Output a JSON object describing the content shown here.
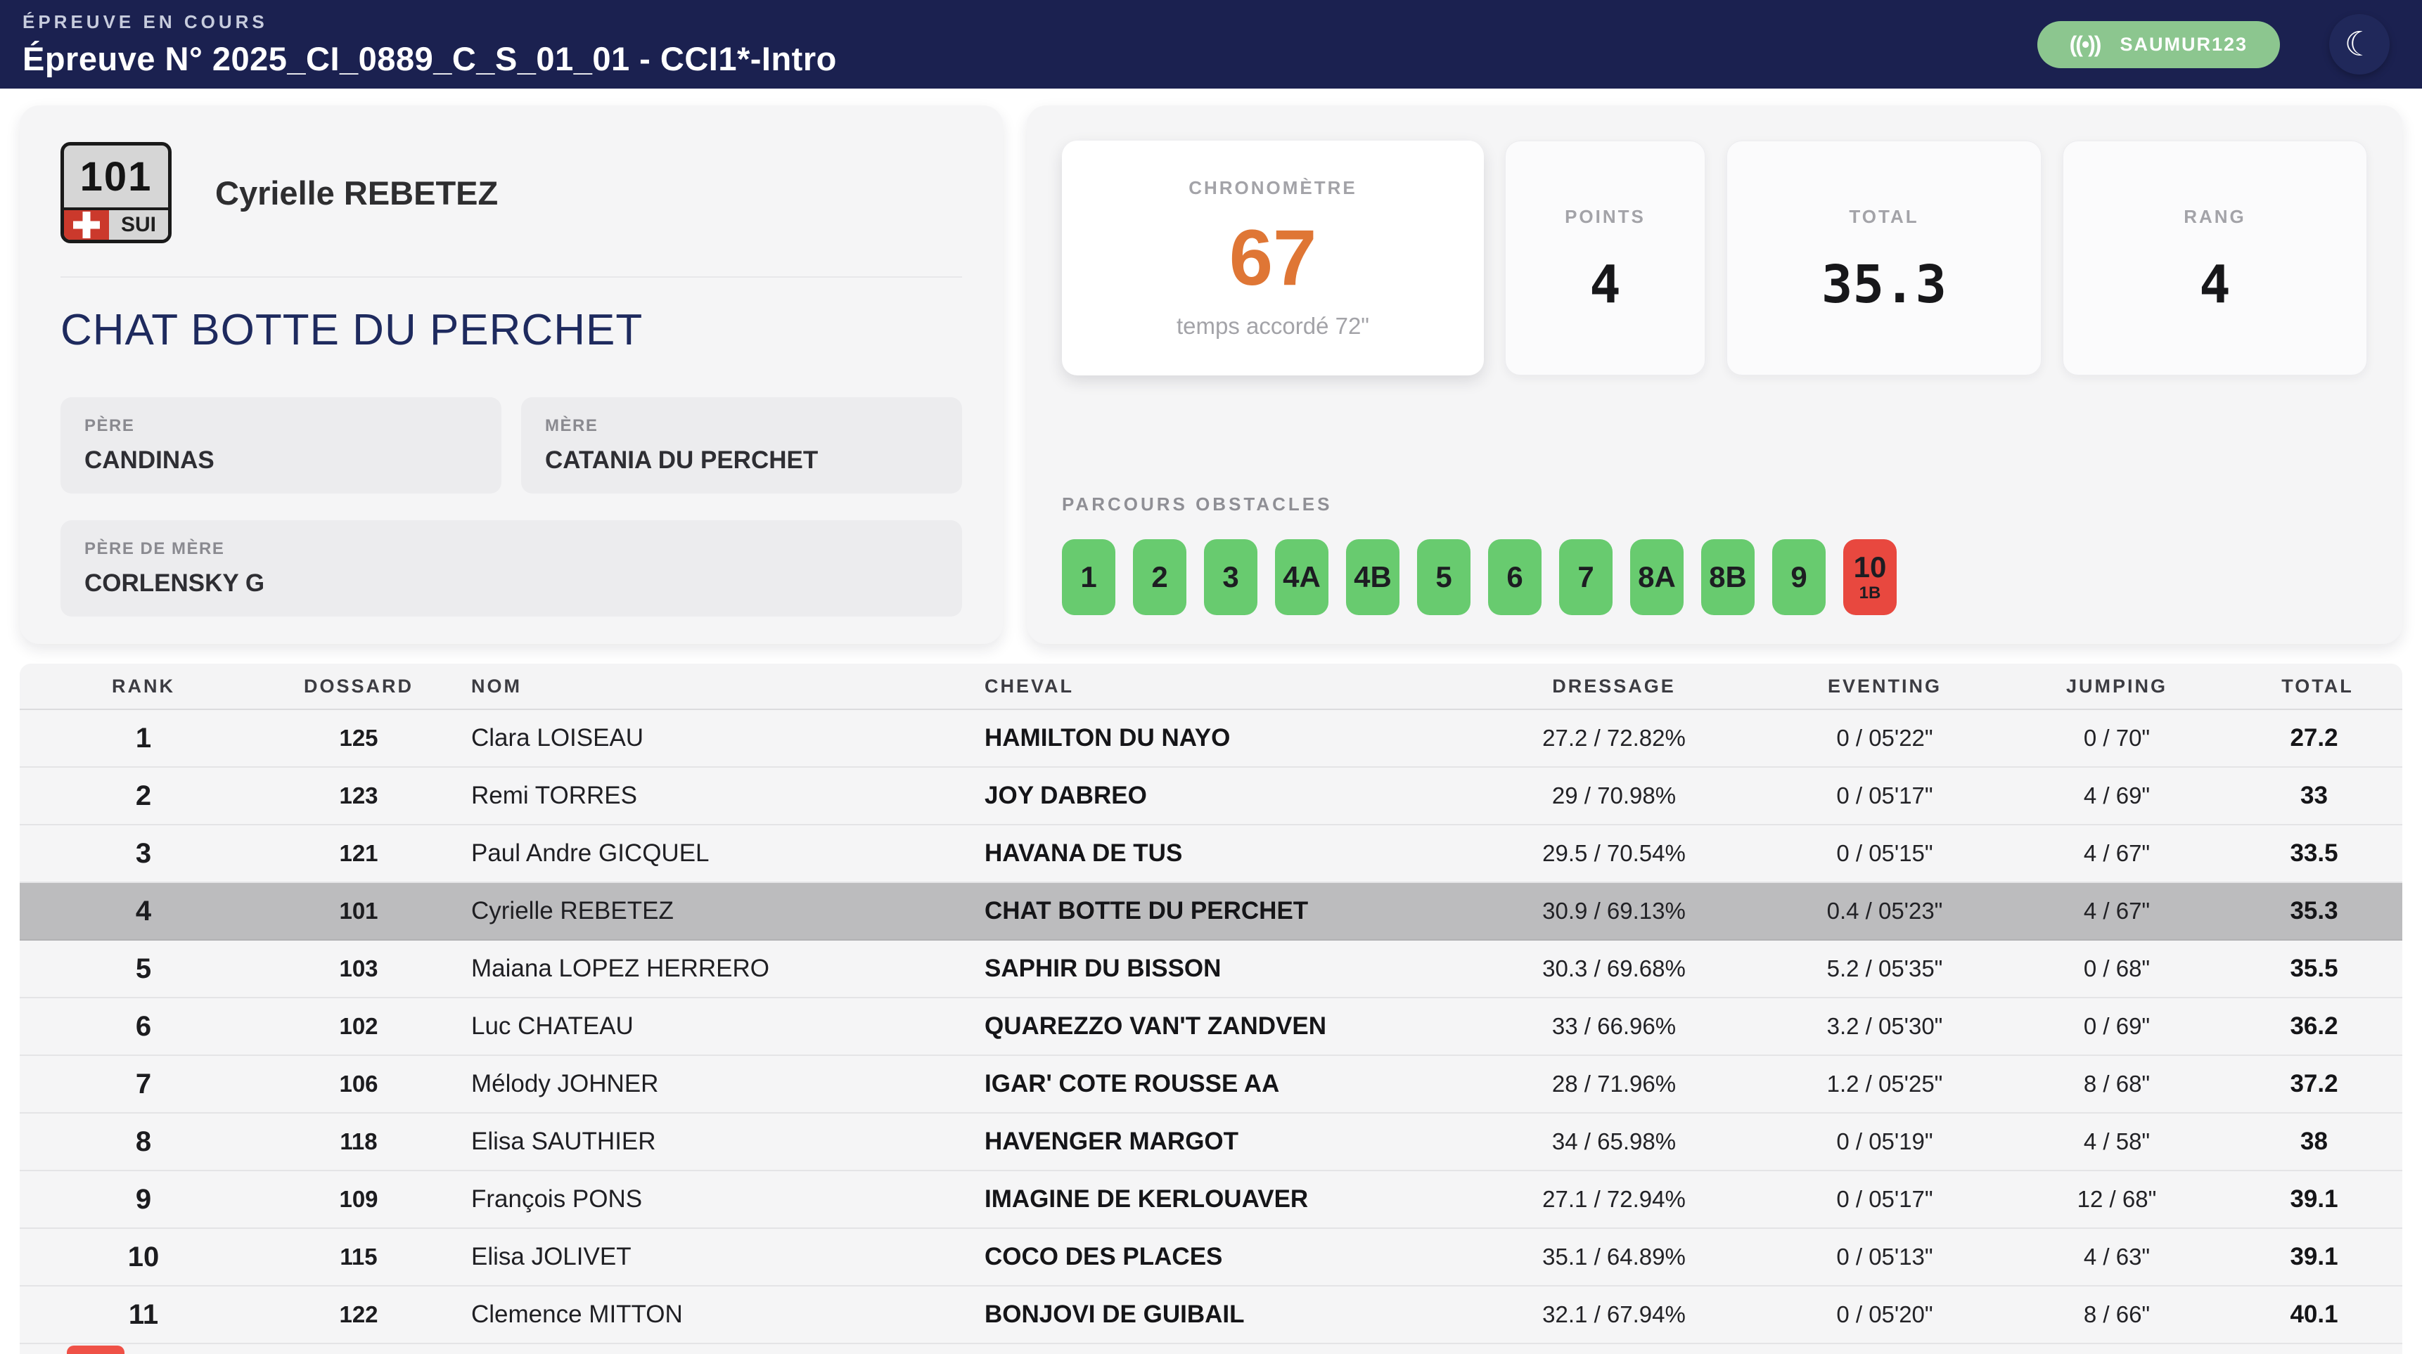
{
  "header": {
    "kicker": "ÉPREUVE EN COURS",
    "title": "Épreuve N° 2025_CI_0889_C_S_01_01 - CCI1*-Intro",
    "badge_label": "SAUMUR123",
    "broadcast_icon": "((•))",
    "moon_icon": "☾"
  },
  "rider": {
    "bib": "101",
    "country": "SUI",
    "name": "Cyrielle REBETEZ",
    "horse": "CHAT BOTTE DU PERCHET",
    "pedigree": {
      "sire_label": "PÈRE",
      "sire": "CANDINAS",
      "dam_label": "MÈRE",
      "dam": "CATANIA DU PERCHET",
      "damsire_label": "PÈRE DE MÈRE",
      "damsire": "CORLENSKY G"
    }
  },
  "stats": {
    "chrono_label": "CHRONOMÈTRE",
    "chrono_value": "67",
    "chrono_sub": "temps accordé 72\"",
    "points_label": "POINTS",
    "points_value": "4",
    "total_label": "TOTAL",
    "total_value": "35.3",
    "rank_label": "RANG",
    "rank_value": "4"
  },
  "obstacles": {
    "label": "PARCOURS OBSTACLES",
    "items": [
      {
        "id": "1",
        "status": "clear"
      },
      {
        "id": "2",
        "status": "clear"
      },
      {
        "id": "3",
        "status": "clear"
      },
      {
        "id": "4A",
        "status": "clear"
      },
      {
        "id": "4B",
        "status": "clear"
      },
      {
        "id": "5",
        "status": "clear"
      },
      {
        "id": "6",
        "status": "clear"
      },
      {
        "id": "7",
        "status": "clear"
      },
      {
        "id": "8A",
        "status": "clear"
      },
      {
        "id": "8B",
        "status": "clear"
      },
      {
        "id": "9",
        "status": "clear"
      },
      {
        "id": "10",
        "sub": "1B",
        "status": "fault"
      }
    ]
  },
  "table": {
    "columns": [
      "RANK",
      "DOSSARD",
      "NOM",
      "CHEVAL",
      "DRESSAGE",
      "EVENTING",
      "JUMPING",
      "TOTAL"
    ],
    "rows": [
      {
        "rank": "1",
        "dossard": "125",
        "nom": "Clara LOISEAU",
        "cheval": "HAMILTON DU NAYO",
        "dressage": "27.2 / 72.82%",
        "eventing": "0 / 05'22\"",
        "jumping": "0 / 70\"",
        "total": "27.2",
        "highlighted": false
      },
      {
        "rank": "2",
        "dossard": "123",
        "nom": "Remi TORRES",
        "cheval": "JOY DABREO",
        "dressage": "29 / 70.98%",
        "eventing": "0 / 05'17\"",
        "jumping": "4 / 69\"",
        "total": "33",
        "highlighted": false
      },
      {
        "rank": "3",
        "dossard": "121",
        "nom": "Paul Andre GICQUEL",
        "cheval": "HAVANA DE TUS",
        "dressage": "29.5 / 70.54%",
        "eventing": "0 / 05'15\"",
        "jumping": "4 / 67\"",
        "total": "33.5",
        "highlighted": false
      },
      {
        "rank": "4",
        "dossard": "101",
        "nom": "Cyrielle REBETEZ",
        "cheval": "CHAT BOTTE DU PERCHET",
        "dressage": "30.9 / 69.13%",
        "eventing": "0.4 / 05'23\"",
        "jumping": "4 / 67\"",
        "total": "35.3",
        "highlighted": true
      },
      {
        "rank": "5",
        "dossard": "103",
        "nom": "Maiana LOPEZ HERRERO",
        "cheval": "SAPHIR DU BISSON",
        "dressage": "30.3 / 69.68%",
        "eventing": "5.2 / 05'35\"",
        "jumping": "0 / 68\"",
        "total": "35.5",
        "highlighted": false
      },
      {
        "rank": "6",
        "dossard": "102",
        "nom": "Luc CHATEAU",
        "cheval": "QUAREZZO VAN'T ZANDVEN",
        "dressage": "33 / 66.96%",
        "eventing": "3.2 / 05'30\"",
        "jumping": "0 / 69\"",
        "total": "36.2",
        "highlighted": false
      },
      {
        "rank": "7",
        "dossard": "106",
        "nom": "Mélody JOHNER",
        "cheval": "IGAR' COTE ROUSSE AA",
        "dressage": "28 / 71.96%",
        "eventing": "1.2 / 05'25\"",
        "jumping": "8 / 68\"",
        "total": "37.2",
        "highlighted": false
      },
      {
        "rank": "8",
        "dossard": "118",
        "nom": "Elisa SAUTHIER",
        "cheval": "HAVENGER MARGOT",
        "dressage": "34 / 65.98%",
        "eventing": "0 / 05'19\"",
        "jumping": "4 / 58\"",
        "total": "38",
        "highlighted": false
      },
      {
        "rank": "9",
        "dossard": "109",
        "nom": "François PONS",
        "cheval": "IMAGINE DE KERLOUAVER",
        "dressage": "27.1 / 72.94%",
        "eventing": "0 / 05'17\"",
        "jumping": "12 / 68\"",
        "total": "39.1",
        "highlighted": false
      },
      {
        "rank": "10",
        "dossard": "115",
        "nom": "Elisa JOLIVET",
        "cheval": "COCO DES PLACES",
        "dressage": "35.1 / 64.89%",
        "eventing": "0 / 05'13\"",
        "jumping": "4 / 63\"",
        "total": "39.1",
        "highlighted": false
      },
      {
        "rank": "11",
        "dossard": "122",
        "nom": "Clemence MITTON",
        "cheval": "BONJOVI DE GUIBAIL",
        "dressage": "32.1 / 67.94%",
        "eventing": "0 / 05'20\"",
        "jumping": "8 / 66\"",
        "total": "40.1",
        "highlighted": false
      }
    ]
  },
  "colors": {
    "header_navy": "#1b2150",
    "badge_green": "#8cc68f",
    "obstacle_green": "#68cb6f",
    "obstacle_red": "#e8483f",
    "chrono_orange": "#df7635",
    "highlight_gray": "#bcbcbe",
    "horse_navy": "#1e2a5e"
  }
}
